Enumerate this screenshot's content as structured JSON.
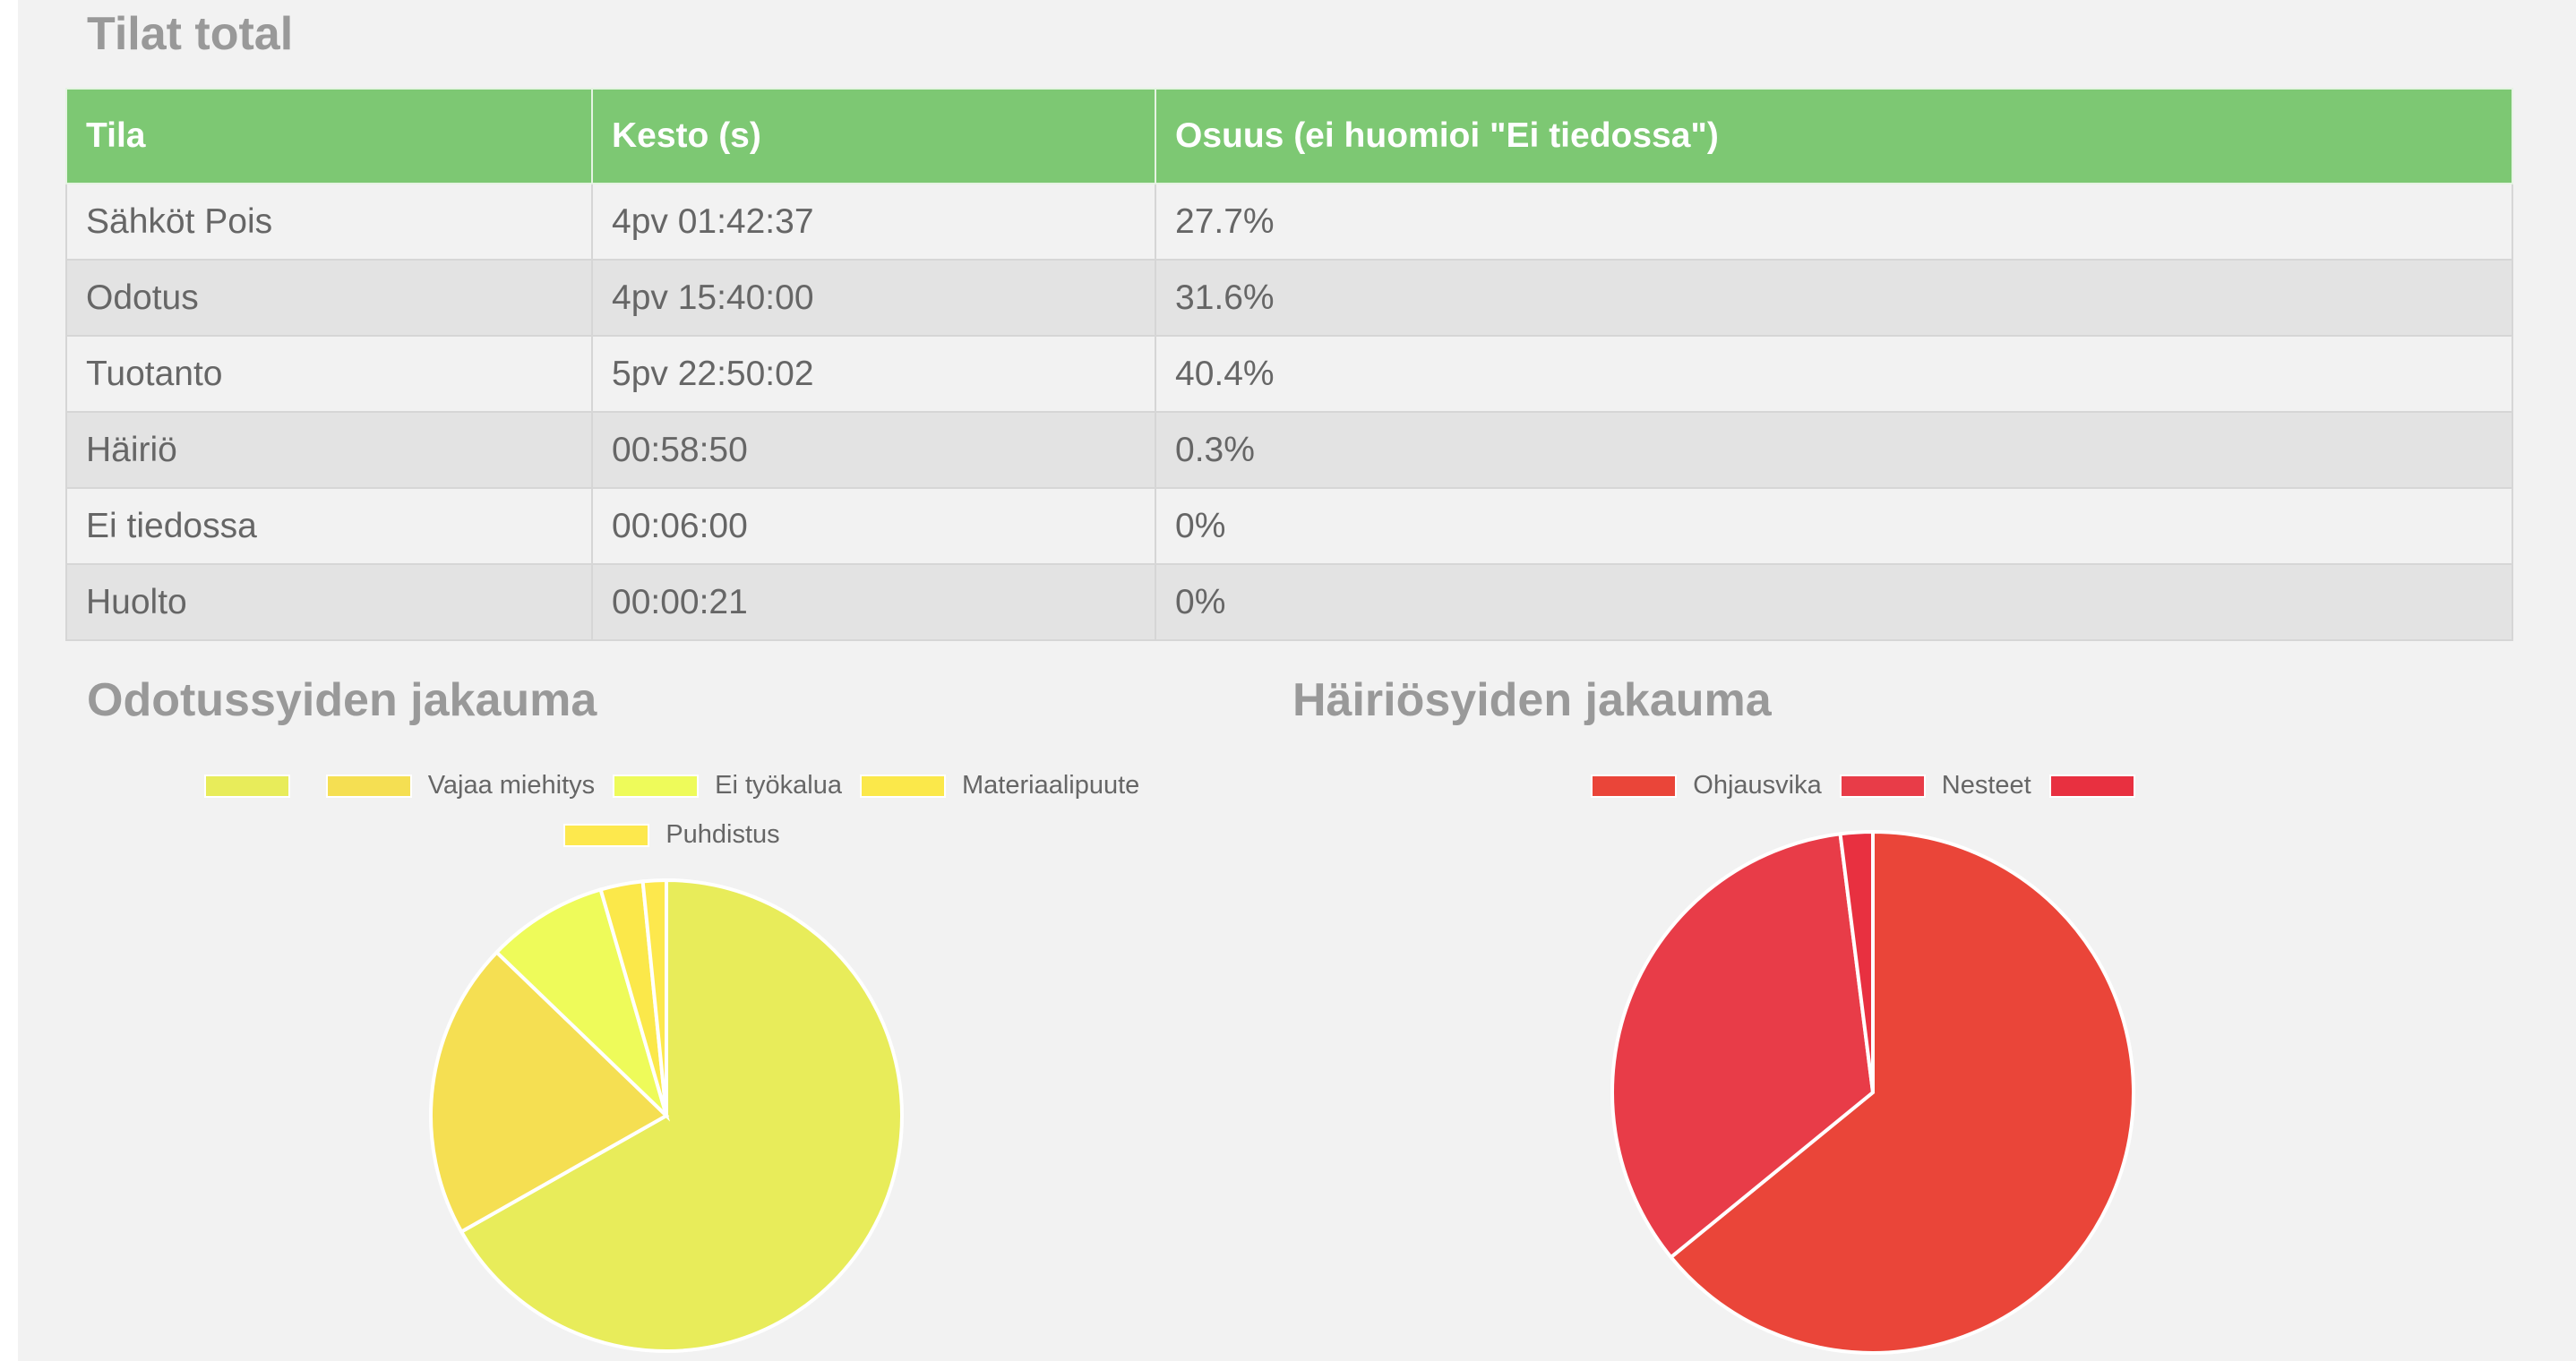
{
  "tilat": {
    "title": "Tilat total",
    "columns": [
      "Tila",
      "Kesto (s)",
      "Osuus (ei huomioi \"Ei tiedossa\")"
    ],
    "rows": [
      [
        "Sähköt Pois",
        "4pv 01:42:37",
        "27.7%"
      ],
      [
        "Odotus",
        "4pv 15:40:00",
        "31.6%"
      ],
      [
        "Tuotanto",
        "5pv 22:50:02",
        "40.4%"
      ],
      [
        "Häiriö",
        "00:58:50",
        "0.3%"
      ],
      [
        "Ei tiedossa",
        "00:06:00",
        "0%"
      ],
      [
        "Huolto",
        "00:00:21",
        "0%"
      ]
    ]
  },
  "chart_data": [
    {
      "type": "pie",
      "title": "Odotussyiden jakauma",
      "categories": [
        "",
        "Vajaa miehitys",
        "Ei työkalua",
        "Materiaalipuute",
        "Puhdistus"
      ],
      "values": [
        66.8,
        20.4,
        8.3,
        2.9,
        1.6
      ],
      "colors": [
        "#e8ec5a",
        "#f5df52",
        "#eefb5a",
        "#fbe84a",
        "#fde84d"
      ],
      "legend": "top"
    },
    {
      "type": "pie",
      "title": "Häiriösyiden jakauma",
      "categories": [
        "Ohjausvika",
        "Nesteet",
        ""
      ],
      "values": [
        64.1,
        33.9,
        2.0
      ],
      "colors": [
        "#ea4539",
        "#e83c48",
        "#e83040"
      ],
      "legend": "top"
    }
  ]
}
